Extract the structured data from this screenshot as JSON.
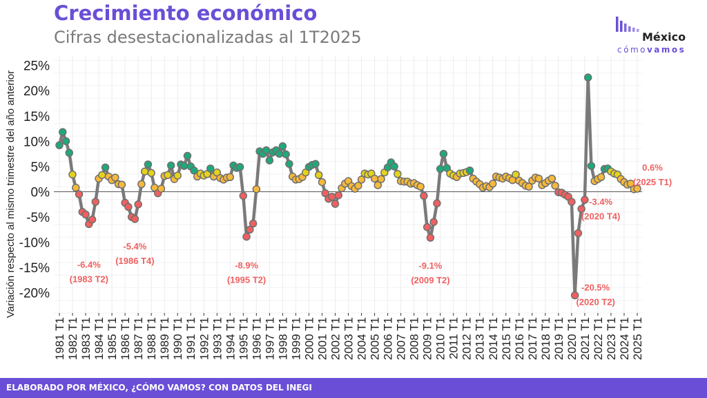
{
  "header": {
    "title": "Crecimiento económico",
    "subtitle": "Cifras desestacionalizadas al 1T2025"
  },
  "logo": {
    "main": "México",
    "sub_light": "cómo",
    "sub_bold": "vamos"
  },
  "footer": {
    "text": "ELABORADO POR MÉXICO, ¿CÓMO VAMOS? CON DATOS DEL INEGI"
  },
  "colors": {
    "accent": "#6a4fd6",
    "line": "#7a7a7a",
    "red": "#f06060",
    "orange": "#f6b93b",
    "yellow": "#e5d21c",
    "green": "#1ea97c",
    "annotation": "#f06060"
  },
  "chart_data": {
    "type": "line",
    "ylabel": "Variación respecto al mismo trimestre del año anterior",
    "xlabel": "",
    "ylim": [
      -24,
      27
    ],
    "y_ticks": [
      -20,
      -15,
      -10,
      -5,
      0,
      5,
      10,
      15,
      20,
      25
    ],
    "y_tick_labels": [
      "-20%",
      "-15%",
      "-10%",
      "-5%",
      "0%",
      "5%",
      "10%",
      "15%",
      "20%",
      "25%"
    ],
    "x_tick_labels": [
      "1981 T1",
      "1982 T1",
      "1983 T1",
      "1984 T1",
      "1985 T1",
      "1986 T1",
      "1987 T1",
      "1988 T1",
      "1989 T1",
      "1990 T1",
      "1991 T1",
      "1992 T1",
      "1993 T1",
      "1994 T1",
      "1995 T1",
      "1996 T1",
      "1997 T1",
      "1998 T1",
      "1999 T1",
      "2000 T1",
      "2001 T1",
      "2002 T1",
      "2003 T1",
      "2004 T1",
      "2005 T1",
      "2006 T1",
      "2007 T1",
      "2008 T1",
      "2009 T1",
      "2010 T1",
      "2011 T1",
      "2012 T1",
      "2013 T1",
      "2014 T1",
      "2015 T1",
      "2016 T1",
      "2017 T1",
      "2018 T1",
      "2019 T1",
      "2020 T1",
      "2021 T1",
      "2022 T1",
      "2023 T1",
      "2024 T1",
      "2025 T1"
    ],
    "grid": true,
    "start": "1981 T1",
    "series": [
      {
        "values": [
          9.2,
          11.8,
          10.0,
          7.7,
          3.4,
          0.8,
          -0.5,
          -4.0,
          -4.5,
          -6.4,
          -5.5,
          -2.0,
          2.6,
          3.3,
          4.8,
          3.0,
          2.3,
          2.8,
          1.5,
          1.4,
          -2.2,
          -3.0,
          -5.0,
          -5.4,
          -2.5,
          1.5,
          4.0,
          5.4,
          3.7,
          0.8,
          -0.3,
          0.6,
          3.1,
          3.3,
          5.2,
          2.5,
          3.2,
          5.4,
          5.1,
          7.1,
          5.0,
          4.2,
          3.0,
          3.6,
          3.2,
          3.5,
          4.6,
          3.0,
          3.8,
          2.7,
          2.4,
          2.8,
          2.9,
          5.2,
          4.7,
          4.9,
          -0.8,
          -8.9,
          -7.5,
          -6.3,
          0.5,
          8.0,
          7.5,
          8.2,
          6.2,
          7.8,
          8.2,
          7.5,
          9.0,
          7.4,
          5.5,
          3.0,
          2.4,
          2.5,
          2.9,
          3.8,
          4.9,
          5.3,
          5.5,
          3.3,
          1.9,
          -0.3,
          -1.4,
          -1.0,
          -2.4,
          -0.7,
          0.7,
          1.6,
          2.1,
          1.1,
          0.6,
          1.2,
          2.4,
          3.6,
          3.4,
          3.6,
          2.6,
          1.3,
          2.5,
          3.8,
          4.8,
          5.8,
          5.0,
          3.5,
          2.1,
          2.0,
          2.0,
          1.6,
          1.7,
          1.3,
          1.0,
          -0.8,
          -7.0,
          -9.1,
          -6.0,
          -2.3,
          4.5,
          7.5,
          4.7,
          3.6,
          3.2,
          2.9,
          3.6,
          3.7,
          3.9,
          4.2,
          2.6,
          2.0,
          1.5,
          0.8,
          1.1,
          0.9,
          1.6,
          3.0,
          2.8,
          2.6,
          3.0,
          2.7,
          2.3,
          3.4,
          2.2,
          1.7,
          1.2,
          1.0,
          2.2,
          2.8,
          2.6,
          1.3,
          1.7,
          2.2,
          2.6,
          1.2,
          -0.1,
          -0.2,
          -0.6,
          -1.0,
          -2.0,
          -20.5,
          -8.2,
          -3.4,
          -1.6,
          22.6,
          5.1,
          2.1,
          2.5,
          2.9,
          4.5,
          4.6,
          4.0,
          3.6,
          3.4,
          2.5,
          1.9,
          1.4,
          1.6,
          0.5,
          0.6
        ]
      }
    ],
    "annotations": [
      {
        "index": 9,
        "value": "-6.4%",
        "period": "(1983 T2)"
      },
      {
        "index": 23,
        "value": "-5.4%",
        "period": "(1986 T4)"
      },
      {
        "index": 57,
        "value": "-8.9%",
        "period": "(1995 T2)"
      },
      {
        "index": 113,
        "value": "-9.1%",
        "period": "(2009 T2)"
      },
      {
        "index": 157,
        "value": "-20.5%",
        "period": "(2020 T2)"
      },
      {
        "index": 159,
        "value": "-3.4%",
        "period": "(2020 T4)"
      },
      {
        "index": 176,
        "value": "0.6%",
        "period": "(2025 T1)"
      }
    ]
  }
}
